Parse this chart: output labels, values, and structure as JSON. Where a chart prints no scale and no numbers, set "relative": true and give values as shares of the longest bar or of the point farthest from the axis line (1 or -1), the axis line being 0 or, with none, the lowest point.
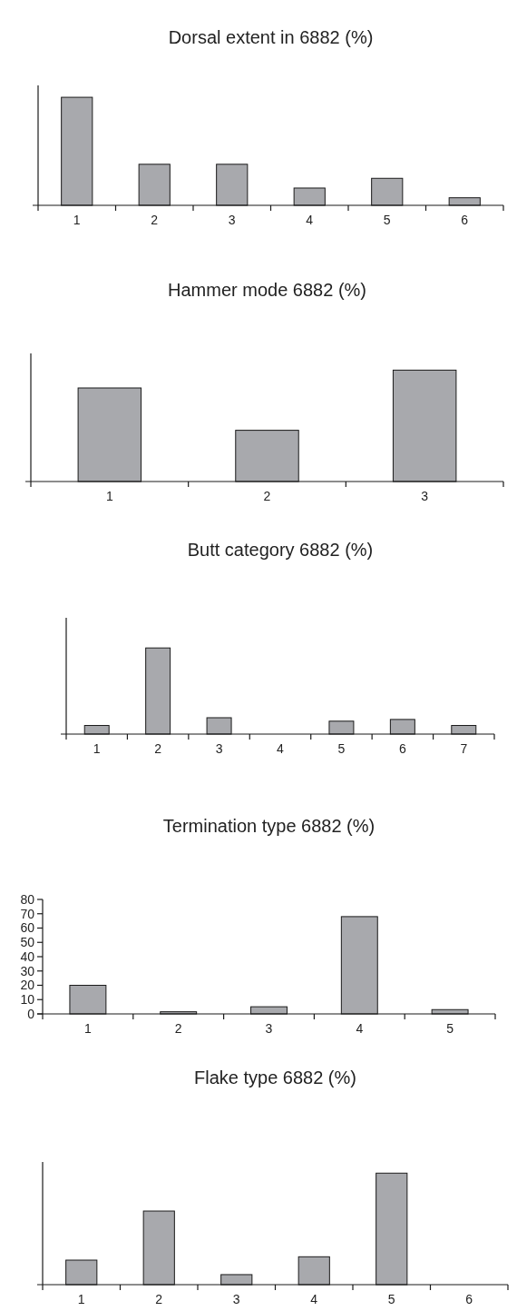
{
  "chart_data": [
    {
      "type": "bar",
      "title": "Dorsal extent in 6882 (%)",
      "categories": [
        "1",
        "2",
        "3",
        "4",
        "5",
        "6"
      ],
      "values": [
        1,
        0.38,
        0.38,
        0.16,
        0.25,
        0.07
      ],
      "color": "#a8a9ad",
      "relative": true
    },
    {
      "type": "bar",
      "title": "Hammer mode 6882 (%)",
      "categories": [
        "1",
        "2",
        "3"
      ],
      "values": [
        0.84,
        0.46,
        1
      ],
      "color": "#a8a9ad",
      "relative": true
    },
    {
      "type": "bar",
      "title": "Butt category 6882 (%)",
      "categories": [
        "1",
        "2",
        "3",
        "4",
        "5",
        "6",
        "7"
      ],
      "values": [
        0.1,
        1,
        0.19,
        0,
        0.15,
        0.17,
        0.1
      ],
      "color": "#a8a9ad",
      "relative": true
    },
    {
      "type": "bar",
      "title": "Termination type 6882 (%)",
      "categories": [
        "1",
        "2",
        "3",
        "4",
        "5"
      ],
      "values": [
        20,
        1.5,
        5,
        68,
        3
      ],
      "color": "#a8a9ad",
      "ylim": [
        0,
        80
      ],
      "yticks": [
        0,
        10,
        20,
        30,
        40,
        50,
        60,
        70,
        80
      ]
    },
    {
      "type": "bar",
      "title": "Flake type 6882 (%)",
      "categories": [
        "1",
        "2",
        "3",
        "4",
        "5",
        "6"
      ],
      "values": [
        0.22,
        0.66,
        0.09,
        0.25,
        1,
        0
      ],
      "color": "#a8a9ad",
      "relative": true
    }
  ]
}
